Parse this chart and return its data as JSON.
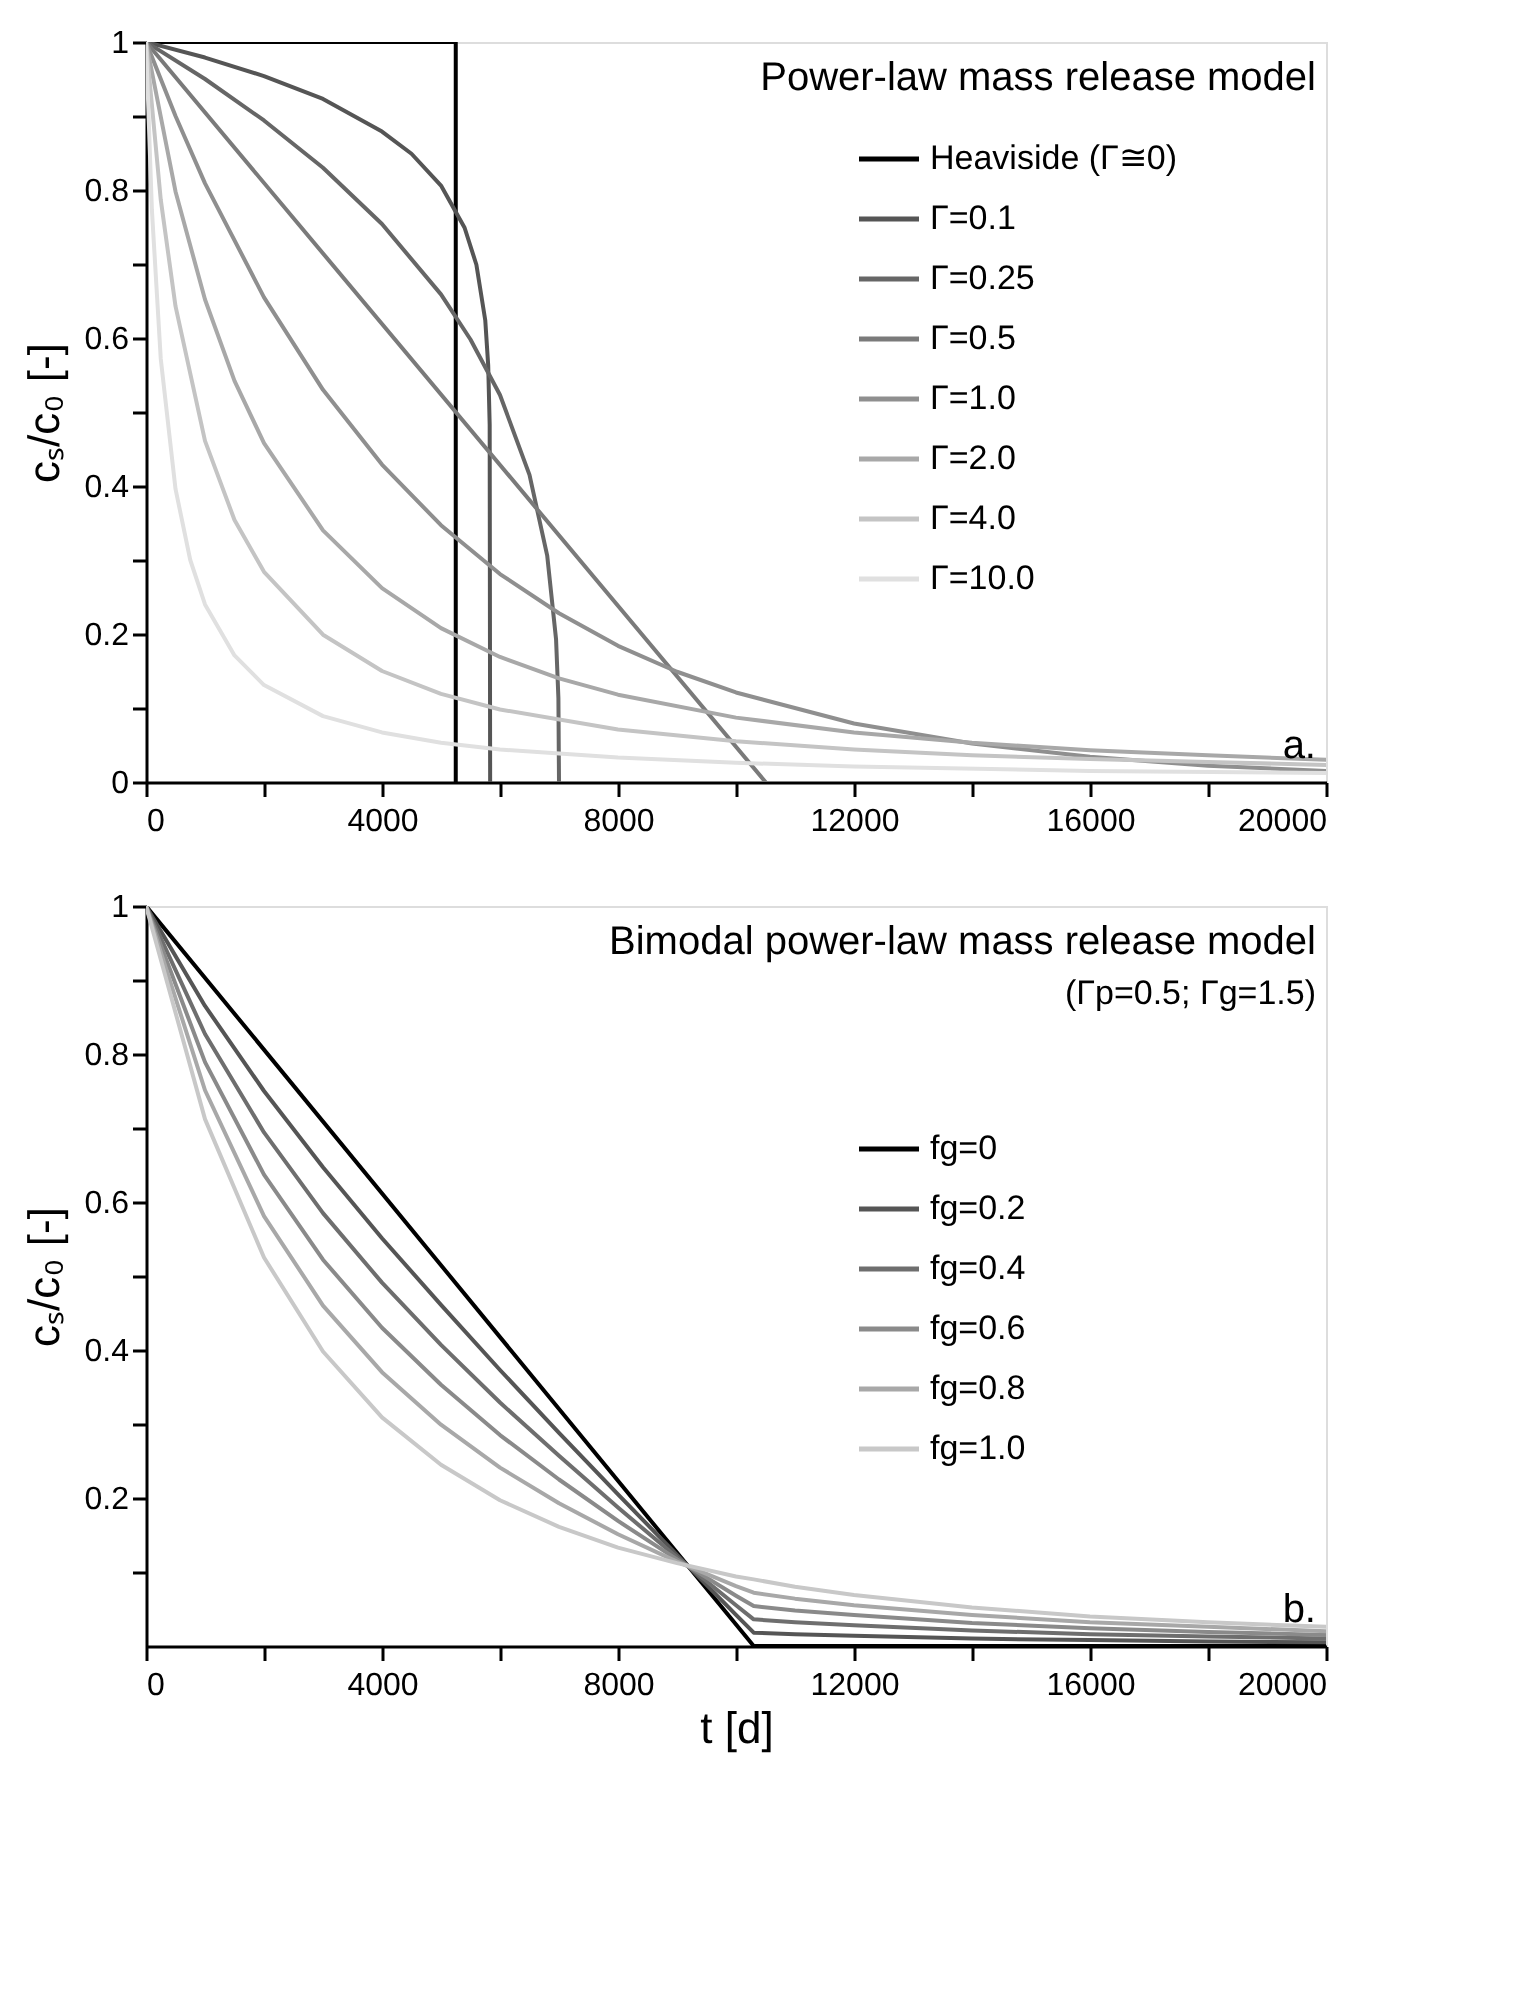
{
  "chart_data": [
    {
      "type": "line",
      "legend_title": "Power-law mass release model",
      "ylabel": "cₛ/c₀ [-]",
      "annotations": [
        "a."
      ],
      "legend": "top right",
      "xlim": [
        0,
        20000
      ],
      "ylim": [
        0,
        1
      ],
      "xticks": [
        0,
        {
          "value": 2000,
          "label": null
        },
        4000,
        {
          "value": 6000,
          "label": null
        },
        8000,
        {
          "value": 10000,
          "label": null
        },
        12000,
        {
          "value": 14000,
          "label": null
        },
        16000,
        {
          "value": 18000,
          "label": null
        },
        20000
      ],
      "yticks": [
        0,
        {
          "value": 0.1,
          "label": null
        },
        0.2,
        {
          "value": 0.3,
          "label": null
        },
        0.4,
        {
          "value": 0.5,
          "label": null
        },
        0.6,
        {
          "value": 0.7,
          "label": null
        },
        0.8,
        {
          "value": 0.9,
          "label": null
        },
        1
      ],
      "series": [
        {
          "name": "Heaviside (Γ≅0)",
          "color": "#000000",
          "x": [
            0,
            5250,
            5250
          ],
          "values": [
            1,
            1,
            0
          ]
        },
        {
          "name": "Γ=0.1",
          "color": "#555555",
          "x": [
            0,
            1000,
            2000,
            3000,
            4000,
            4500,
            5000,
            5400,
            5600,
            5750,
            5800,
            5825,
            5833
          ],
          "values": [
            1,
            0.979,
            0.954,
            0.923,
            0.879,
            0.849,
            0.806,
            0.749,
            0.699,
            0.624,
            0.563,
            0.483,
            0
          ]
        },
        {
          "name": "Γ=0.25",
          "color": "#666666",
          "x": [
            0,
            1000,
            2000,
            3000,
            4000,
            5000,
            5500,
            6000,
            6500,
            6800,
            6950,
            6990,
            7000
          ],
          "values": [
            1,
            0.95,
            0.894,
            0.83,
            0.754,
            0.659,
            0.598,
            0.523,
            0.415,
            0.306,
            0.193,
            0.113,
            0
          ]
        },
        {
          "name": "Γ=0.5",
          "color": "#7a7a7a",
          "x": [
            0,
            10500
          ],
          "values": [
            1,
            0
          ]
        },
        {
          "name": "Γ=1.0",
          "color": "#8f8f8f",
          "x": [
            0,
            500,
            1000,
            2000,
            3000,
            4000,
            5000,
            6000,
            7000,
            8000,
            9000,
            10000,
            12000,
            14000,
            16000,
            18000,
            20000
          ],
          "values": [
            1,
            0.9,
            0.809,
            0.655,
            0.53,
            0.429,
            0.347,
            0.281,
            0.228,
            0.184,
            0.149,
            0.121,
            0.079,
            0.052,
            0.034,
            0.022,
            0.015
          ]
        },
        {
          "name": "Γ=2.0",
          "color": "#a8a8a8",
          "x": [
            0,
            500,
            1000,
            1500,
            2000,
            3000,
            4000,
            5000,
            6000,
            7000,
            8000,
            10000,
            12000,
            14000,
            16000,
            18000,
            20000
          ],
          "values": [
            1,
            0.798,
            0.652,
            0.542,
            0.458,
            0.34,
            0.262,
            0.208,
            0.169,
            0.14,
            0.118,
            0.087,
            0.067,
            0.053,
            0.043,
            0.036,
            0.03
          ]
        },
        {
          "name": "Γ=4.0",
          "color": "#c4c4c4",
          "x": [
            0,
            250,
            500,
            1000,
            1500,
            2000,
            3000,
            4000,
            5000,
            6000,
            8000,
            10000,
            12000,
            14000,
            16000,
            18000,
            20000
          ],
          "values": [
            1,
            0.787,
            0.643,
            0.461,
            0.354,
            0.284,
            0.199,
            0.15,
            0.119,
            0.098,
            0.071,
            0.055,
            0.044,
            0.036,
            0.031,
            0.027,
            0.023
          ]
        },
        {
          "name": "Γ=10.0",
          "color": "#e0e0e0",
          "x": [
            0,
            100,
            250,
            500,
            750,
            1000,
            1500,
            2000,
            3000,
            4000,
            5000,
            6000,
            8000,
            10000,
            12000,
            16000,
            20000
          ],
          "values": [
            1,
            0.773,
            0.572,
            0.396,
            0.3,
            0.24,
            0.171,
            0.131,
            0.089,
            0.067,
            0.053,
            0.044,
            0.033,
            0.026,
            0.021,
            0.015,
            0.012
          ]
        }
      ]
    },
    {
      "type": "line",
      "legend_title": "Bimodal power-law mass release model",
      "xlabel": "t [d]",
      "ylabel": "cₛ/c₀ [-]",
      "annotations": [
        "(Γp=0.5; Γg=1.5)",
        "b."
      ],
      "legend": "right",
      "xlim": [
        0,
        20000
      ],
      "ylim": [
        0,
        1
      ],
      "xticks": [
        0,
        {
          "value": 2000,
          "label": null
        },
        4000,
        {
          "value": 6000,
          "label": null
        },
        8000,
        {
          "value": 10000,
          "label": null
        },
        12000,
        {
          "value": 14000,
          "label": null
        },
        16000,
        {
          "value": 18000,
          "label": null
        },
        20000
      ],
      "yticks": [
        {
          "value": 0.1,
          "label": null
        },
        0.2,
        {
          "value": 0.3,
          "label": null
        },
        0.4,
        {
          "value": 0.5,
          "label": null
        },
        0.6,
        {
          "value": 0.7,
          "label": null
        },
        0.8,
        {
          "value": 0.9,
          "label": null
        },
        1
      ],
      "series": [
        {
          "name": "fg=0",
          "color": "#000000",
          "x": [
            0,
            10300,
            20000
          ],
          "values": [
            1,
            0,
            0
          ]
        },
        {
          "name": "fg=0.2",
          "color": "#555555",
          "x": [
            0,
            1000,
            2000,
            3000,
            4000,
            5000,
            6000,
            7000,
            8000,
            9000,
            10000,
            10300,
            11000,
            12000,
            14000,
            16000,
            18000,
            20000
          ],
          "values": [
            1,
            0.865,
            0.75,
            0.647,
            0.551,
            0.461,
            0.373,
            0.288,
            0.205,
            0.123,
            0.042,
            0.018,
            0.016,
            0.014,
            0.01,
            0.008,
            0.006,
            0.005
          ]
        },
        {
          "name": "fg=0.4",
          "color": "#6e6e6e",
          "x": [
            0,
            1000,
            2000,
            3000,
            4000,
            5000,
            6000,
            7000,
            8000,
            9000,
            10000,
            10300,
            11000,
            12000,
            14000,
            16000,
            18000,
            20000
          ],
          "values": [
            1,
            0.827,
            0.694,
            0.585,
            0.491,
            0.407,
            0.329,
            0.257,
            0.187,
            0.12,
            0.055,
            0.036,
            0.032,
            0.028,
            0.021,
            0.016,
            0.013,
            0.01
          ]
        },
        {
          "name": "fg=0.6",
          "color": "#8a8a8a",
          "x": [
            0,
            1000,
            2000,
            3000,
            4000,
            5000,
            6000,
            7000,
            8000,
            9000,
            10000,
            10300,
            11000,
            12000,
            14000,
            16000,
            18000,
            20000
          ],
          "values": [
            1,
            0.789,
            0.637,
            0.522,
            0.43,
            0.353,
            0.285,
            0.225,
            0.169,
            0.117,
            0.068,
            0.054,
            0.048,
            0.042,
            0.031,
            0.024,
            0.019,
            0.015
          ]
        },
        {
          "name": "fg=0.8",
          "color": "#a8a8a8",
          "x": [
            0,
            1000,
            2000,
            3000,
            4000,
            5000,
            6000,
            7000,
            8000,
            9000,
            10000,
            10300,
            11000,
            12000,
            14000,
            16000,
            18000,
            20000
          ],
          "values": [
            1,
            0.751,
            0.581,
            0.46,
            0.37,
            0.299,
            0.241,
            0.193,
            0.151,
            0.114,
            0.081,
            0.072,
            0.064,
            0.055,
            0.042,
            0.032,
            0.026,
            0.02
          ]
        },
        {
          "name": "fg=1.0",
          "color": "#c8c8c8",
          "x": [
            0,
            1000,
            2000,
            3000,
            4000,
            5000,
            6000,
            7000,
            8000,
            9000,
            10000,
            10300,
            11000,
            12000,
            14000,
            16000,
            18000,
            20000
          ],
          "values": [
            1,
            0.712,
            0.525,
            0.398,
            0.309,
            0.245,
            0.197,
            0.161,
            0.133,
            0.112,
            0.094,
            0.09,
            0.08,
            0.069,
            0.052,
            0.04,
            0.032,
            0.026
          ]
        }
      ]
    }
  ]
}
